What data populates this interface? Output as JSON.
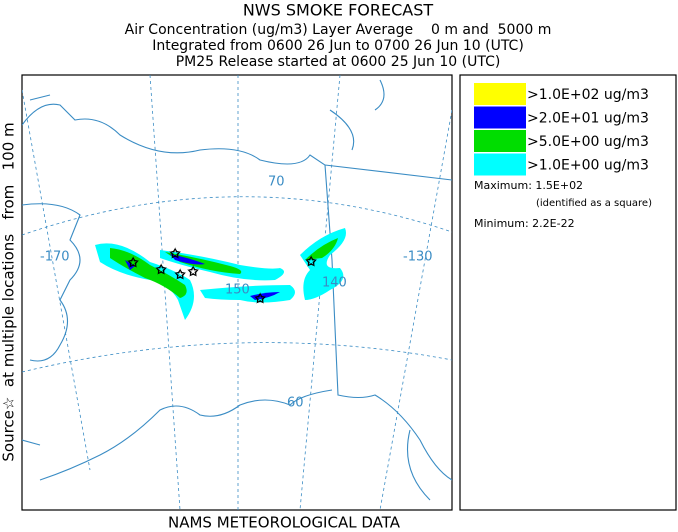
{
  "header": {
    "title": "NWS SMOKE FORECAST",
    "lines": [
      "Air Concentration (ug/m3) Layer Average    0 m and  5000 m",
      "Integrated from 0600 26 Jun to 0700 26 Jun 10 (UTC)",
      "PM25 Release started at 0600 25 Jun 10 (UTC)"
    ]
  },
  "side_label": "Source☆  at multiple locations   from   100 m",
  "map": {
    "graticule_labels": [
      "-170",
      "70",
      "-130",
      "150",
      "140",
      "60"
    ]
  },
  "legend": {
    "items": [
      {
        "label": ">1.0E+02 ug/m3",
        "color": "#ffff00"
      },
      {
        "label": ">2.0E+01 ug/m3",
        "color": "#0000ff"
      },
      {
        "label": ">5.0E+00 ug/m3",
        "color": "#00dd00"
      },
      {
        "label": ">1.0E+00 ug/m3",
        "color": "#00ffff"
      }
    ],
    "maximum": "Maximum: 1.5E+02",
    "maximum_note": "(identified as a square)",
    "minimum": "Minimum: 2.2E-22"
  },
  "footer": "NAMS METEOROLOGICAL DATA"
}
